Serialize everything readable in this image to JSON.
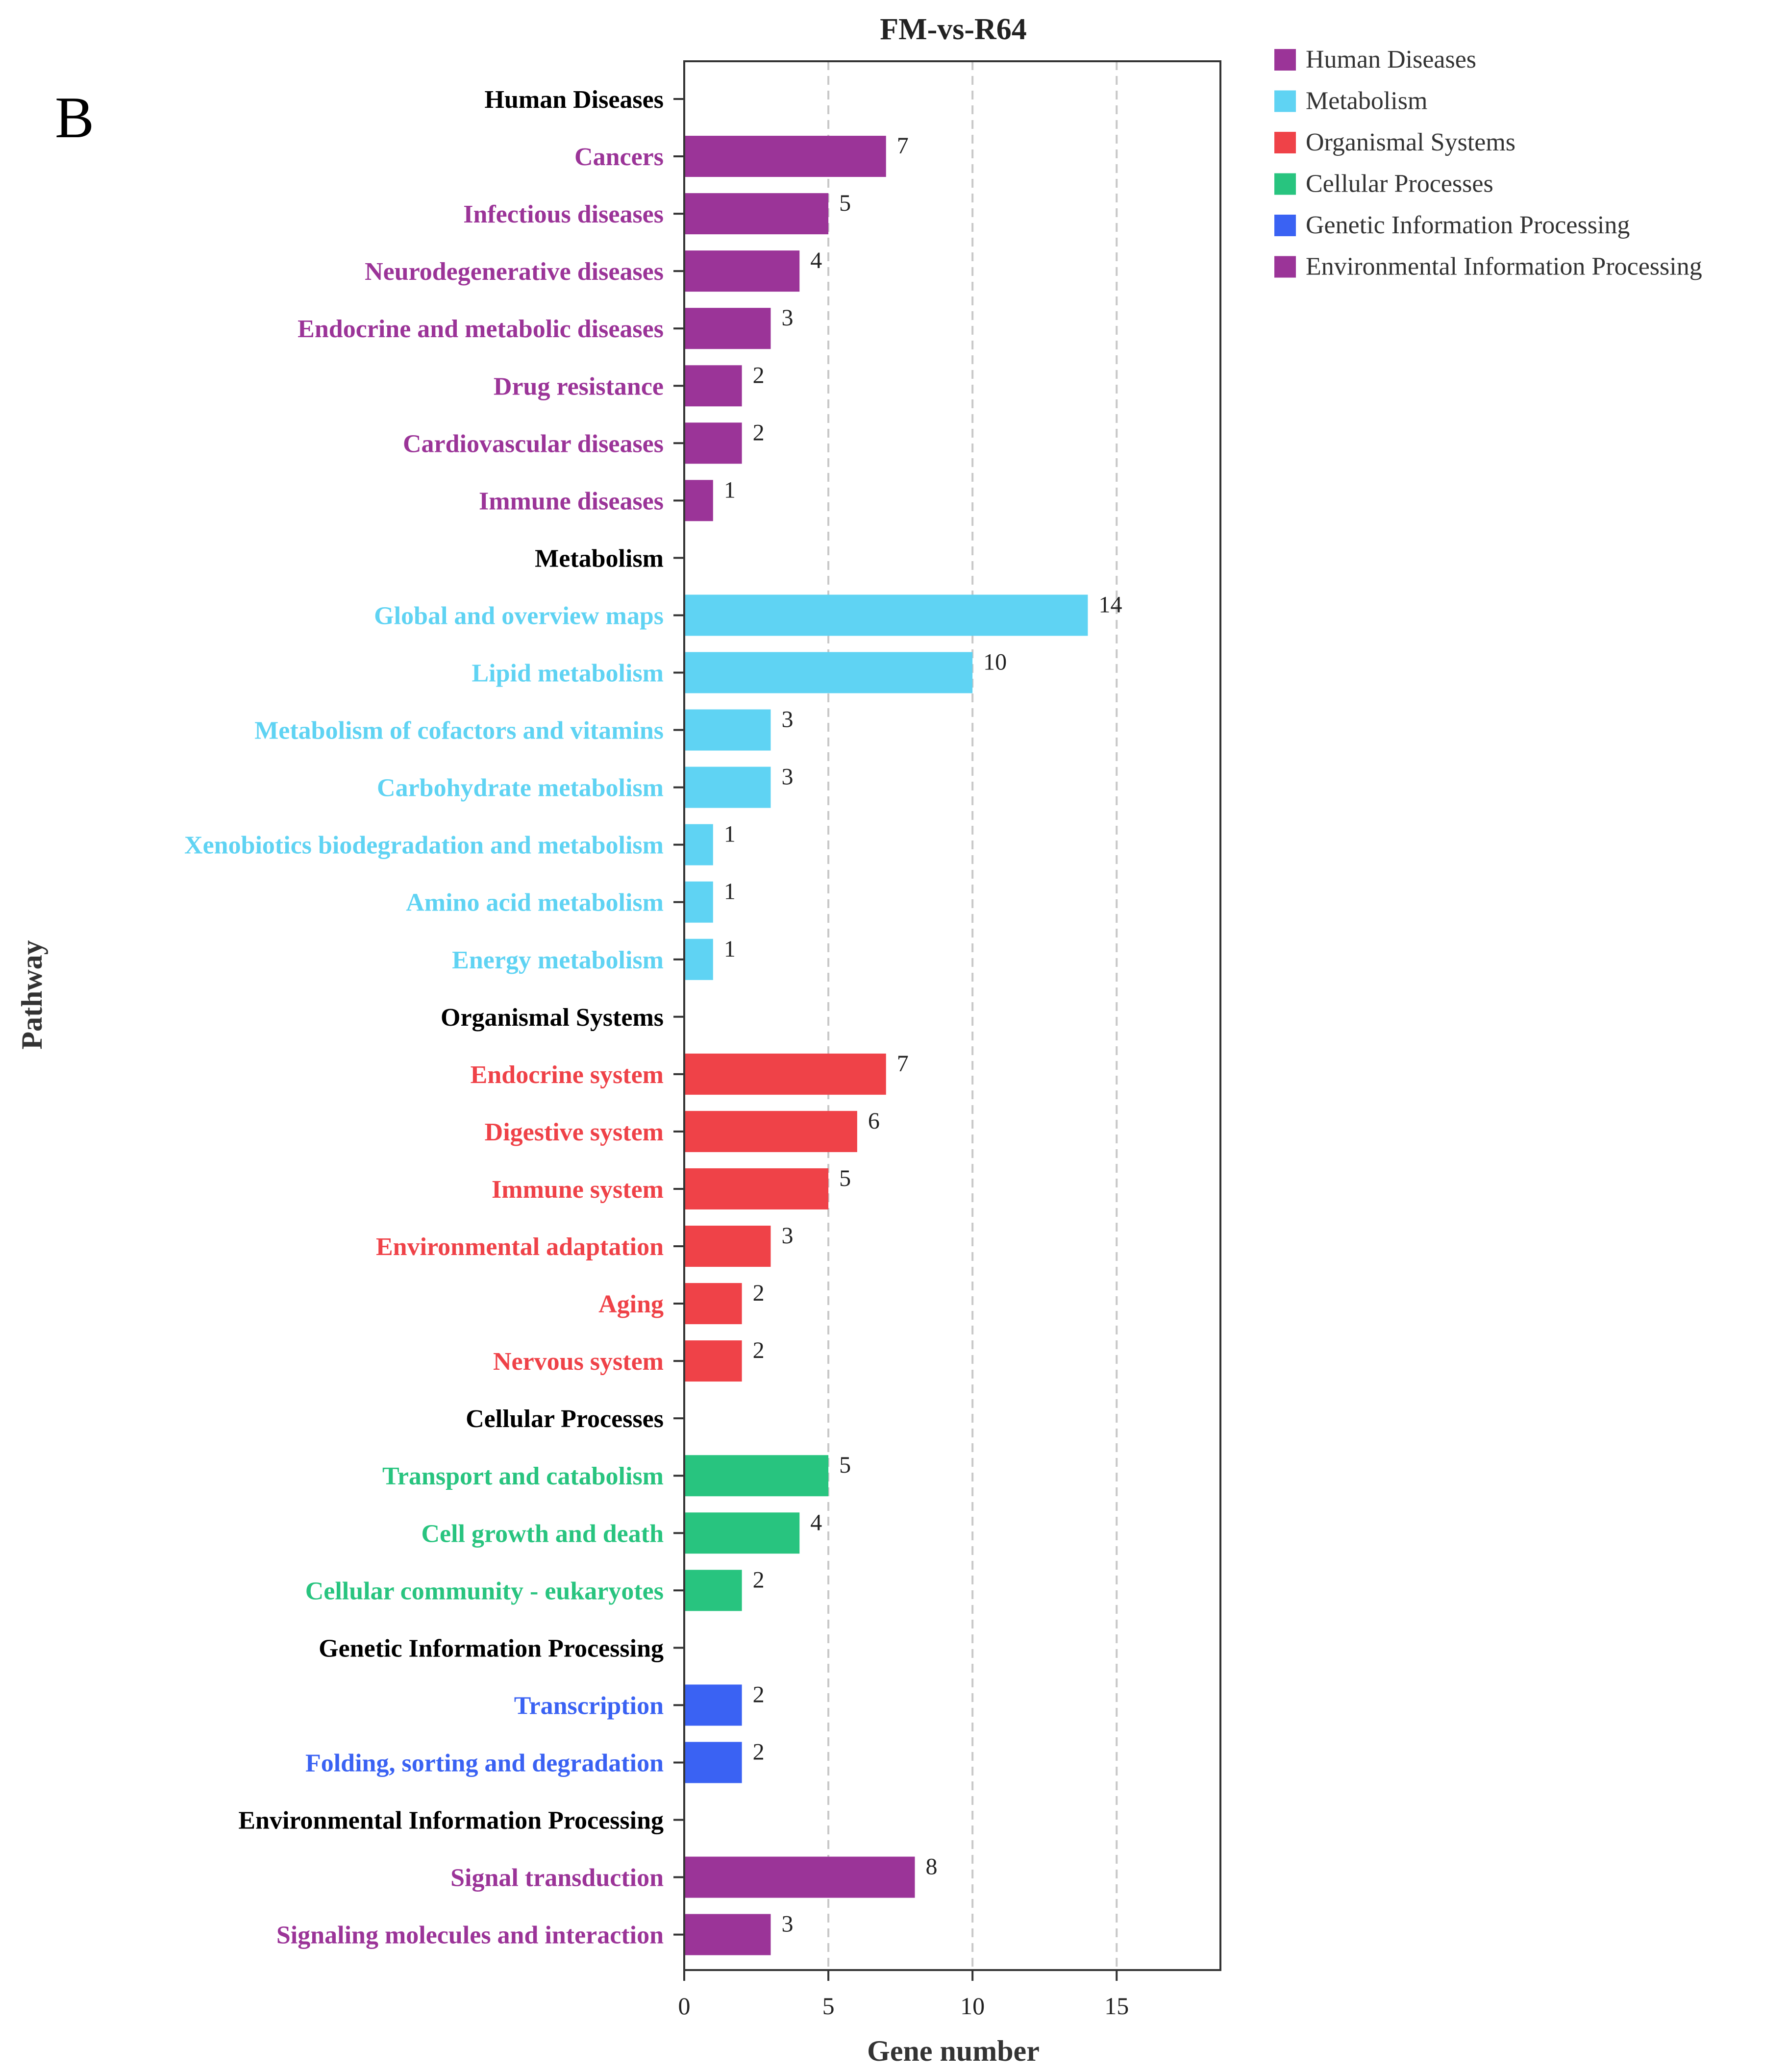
{
  "panel_label": "B",
  "chart_data": {
    "type": "bar",
    "orientation": "horizontal",
    "title": "FM-vs-R64",
    "xlabel": "Gene number",
    "ylabel": "Pathway",
    "xlim": [
      0,
      18.6
    ],
    "xticks": [
      0,
      5,
      10,
      15
    ],
    "grid": "dashed vertical lines at x ticks",
    "legend_position": "top-right, outside plot",
    "groups": [
      {
        "name": "Human Diseases",
        "color": "#9b3498"
      },
      {
        "name": "Metabolism",
        "color": "#5fd3f3"
      },
      {
        "name": "Organismal Systems",
        "color": "#ef4248"
      },
      {
        "name": "Cellular Processes",
        "color": "#28c47f"
      },
      {
        "name": "Genetic Information Processing",
        "color": "#3a62f3"
      },
      {
        "name": "Environmental Information Processing",
        "color": "#9b3498"
      }
    ],
    "rows": [
      {
        "label": "Human Diseases",
        "header": true
      },
      {
        "label": "Cancers",
        "group": 0,
        "value": 7
      },
      {
        "label": "Infectious diseases",
        "group": 0,
        "value": 5
      },
      {
        "label": "Neurodegenerative diseases",
        "group": 0,
        "value": 4
      },
      {
        "label": "Endocrine and metabolic diseases",
        "group": 0,
        "value": 3
      },
      {
        "label": "Drug resistance",
        "group": 0,
        "value": 2
      },
      {
        "label": "Cardiovascular diseases",
        "group": 0,
        "value": 2
      },
      {
        "label": "Immune diseases",
        "group": 0,
        "value": 1
      },
      {
        "label": "Metabolism",
        "header": true
      },
      {
        "label": "Global and overview maps",
        "group": 1,
        "value": 14
      },
      {
        "label": "Lipid metabolism",
        "group": 1,
        "value": 10
      },
      {
        "label": "Metabolism of cofactors and vitamins",
        "group": 1,
        "value": 3
      },
      {
        "label": "Carbohydrate metabolism",
        "group": 1,
        "value": 3
      },
      {
        "label": "Xenobiotics biodegradation and metabolism",
        "group": 1,
        "value": 1
      },
      {
        "label": "Amino acid metabolism",
        "group": 1,
        "value": 1
      },
      {
        "label": "Energy metabolism",
        "group": 1,
        "value": 1
      },
      {
        "label": "Organismal Systems",
        "header": true
      },
      {
        "label": "Endocrine system",
        "group": 2,
        "value": 7
      },
      {
        "label": "Digestive system",
        "group": 2,
        "value": 6
      },
      {
        "label": "Immune system",
        "group": 2,
        "value": 5
      },
      {
        "label": "Environmental adaptation",
        "group": 2,
        "value": 3
      },
      {
        "label": "Aging",
        "group": 2,
        "value": 2
      },
      {
        "label": "Nervous system",
        "group": 2,
        "value": 2
      },
      {
        "label": "Cellular Processes",
        "header": true
      },
      {
        "label": "Transport and catabolism",
        "group": 3,
        "value": 5
      },
      {
        "label": "Cell growth and death",
        "group": 3,
        "value": 4
      },
      {
        "label": "Cellular community - eukaryotes",
        "group": 3,
        "value": 2
      },
      {
        "label": "Genetic Information Processing",
        "header": true
      },
      {
        "label": "Transcription",
        "group": 4,
        "value": 2
      },
      {
        "label": "Folding, sorting and degradation",
        "group": 4,
        "value": 2
      },
      {
        "label": "Environmental Information Processing",
        "header": true
      },
      {
        "label": "Signal transduction",
        "group": 5,
        "value": 8
      },
      {
        "label": "Signaling molecules and interaction",
        "group": 5,
        "value": 3
      }
    ]
  }
}
